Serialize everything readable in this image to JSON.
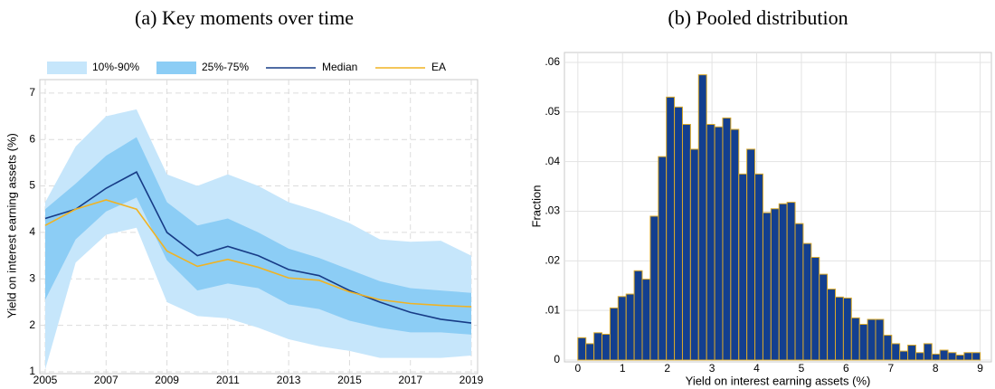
{
  "chart_data": [
    {
      "type": "line",
      "title": "(a) Key moments over time",
      "ylabel": "Yield on interest earning assets (%)",
      "x": [
        2005,
        2006,
        2007,
        2008,
        2009,
        2010,
        2011,
        2012,
        2013,
        2014,
        2015,
        2016,
        2017,
        2018,
        2019
      ],
      "xlim": [
        2005,
        2019
      ],
      "xticks": [
        2005,
        2007,
        2009,
        2011,
        2013,
        2015,
        2017,
        2019
      ],
      "ylim": [
        1,
        7.25
      ],
      "yticks": [
        1,
        2,
        3,
        4,
        5,
        6,
        7
      ],
      "grid": true,
      "legend": "top",
      "series": [
        {
          "name": "10%-90%",
          "color": "#c6e6fb",
          "low": [
            1.05,
            3.35,
            3.95,
            4.1,
            2.5,
            2.2,
            2.15,
            1.95,
            1.7,
            1.55,
            1.45,
            1.3,
            1.3,
            1.3,
            1.35
          ],
          "high": [
            4.65,
            5.85,
            6.5,
            6.65,
            5.25,
            5.0,
            5.25,
            5.0,
            4.65,
            4.45,
            4.2,
            3.85,
            3.8,
            3.82,
            3.5
          ]
        },
        {
          "name": "25%-75%",
          "color": "#8ccdf5",
          "low": [
            2.55,
            3.85,
            4.45,
            4.75,
            3.4,
            2.75,
            2.9,
            2.8,
            2.45,
            2.35,
            2.1,
            1.95,
            1.85,
            1.85,
            1.8
          ],
          "high": [
            4.5,
            5.05,
            5.65,
            6.05,
            4.65,
            4.15,
            4.3,
            4.0,
            3.65,
            3.45,
            3.2,
            2.95,
            2.8,
            2.75,
            2.7
          ]
        },
        {
          "name": "Median",
          "color": "#173b86",
          "values": [
            4.3,
            4.5,
            4.95,
            5.3,
            4.0,
            3.5,
            3.7,
            3.5,
            3.2,
            3.07,
            2.75,
            2.5,
            2.28,
            2.13,
            2.05
          ]
        },
        {
          "name": "EA",
          "color": "#f0b323",
          "values": [
            4.15,
            4.5,
            4.7,
            4.5,
            3.6,
            3.27,
            3.42,
            3.25,
            3.02,
            2.97,
            2.72,
            2.55,
            2.47,
            2.43,
            2.4
          ]
        }
      ]
    },
    {
      "type": "histogram",
      "title": "(b) Pooled distribution",
      "xlabel": "Yield on interest earning assets (%)",
      "ylabel": "Fraction",
      "bins": [
        0,
        0.18,
        0.36,
        0.54,
        0.72,
        0.9,
        1.08,
        1.26,
        1.44,
        1.62,
        1.8,
        1.98,
        2.16,
        2.34,
        2.52,
        2.7,
        2.88,
        3.06,
        3.24,
        3.42,
        3.6,
        3.78,
        3.96,
        4.14,
        4.32,
        4.5,
        4.68,
        4.86,
        5.04,
        5.22,
        5.4,
        5.58,
        5.76,
        5.94,
        6.12,
        6.3,
        6.48,
        6.66,
        6.84,
        7.02,
        7.2,
        7.38,
        7.56,
        7.74,
        7.92,
        8.1,
        8.28,
        8.46,
        8.64,
        8.82,
        9
      ],
      "values": [
        0.0045,
        0.0033,
        0.0055,
        0.0052,
        0.0105,
        0.0128,
        0.0133,
        0.018,
        0.0163,
        0.029,
        0.041,
        0.053,
        0.051,
        0.0475,
        0.0425,
        0.0575,
        0.0475,
        0.047,
        0.0488,
        0.0465,
        0.0375,
        0.0425,
        0.0375,
        0.0297,
        0.0305,
        0.0315,
        0.0318,
        0.0275,
        0.0235,
        0.0207,
        0.0173,
        0.0143,
        0.0127,
        0.0125,
        0.0085,
        0.0072,
        0.0082,
        0.0082,
        0.005,
        0.0033,
        0.0018,
        0.003,
        0.0015,
        0.0033,
        0.0012,
        0.002,
        0.0015,
        0.001,
        0.0015,
        0.0015
      ],
      "color": "#133f8f",
      "edgecolor": "#d9a92a",
      "xlim": [
        -0.3,
        9.25
      ],
      "xticks": [
        0,
        1,
        2,
        3,
        4,
        5,
        6,
        7,
        8,
        9
      ],
      "ylim": [
        0,
        0.062
      ],
      "yticks": [
        0,
        {
          "value": 0.01,
          "label": ".01"
        },
        {
          "value": 0.02,
          "label": ".02"
        },
        {
          "value": 0.03,
          "label": ".03"
        },
        {
          "value": 0.04,
          "label": ".04"
        },
        {
          "value": 0.05,
          "label": ".05"
        },
        {
          "value": 0.06,
          "label": ".06"
        }
      ],
      "grid": true
    }
  ]
}
